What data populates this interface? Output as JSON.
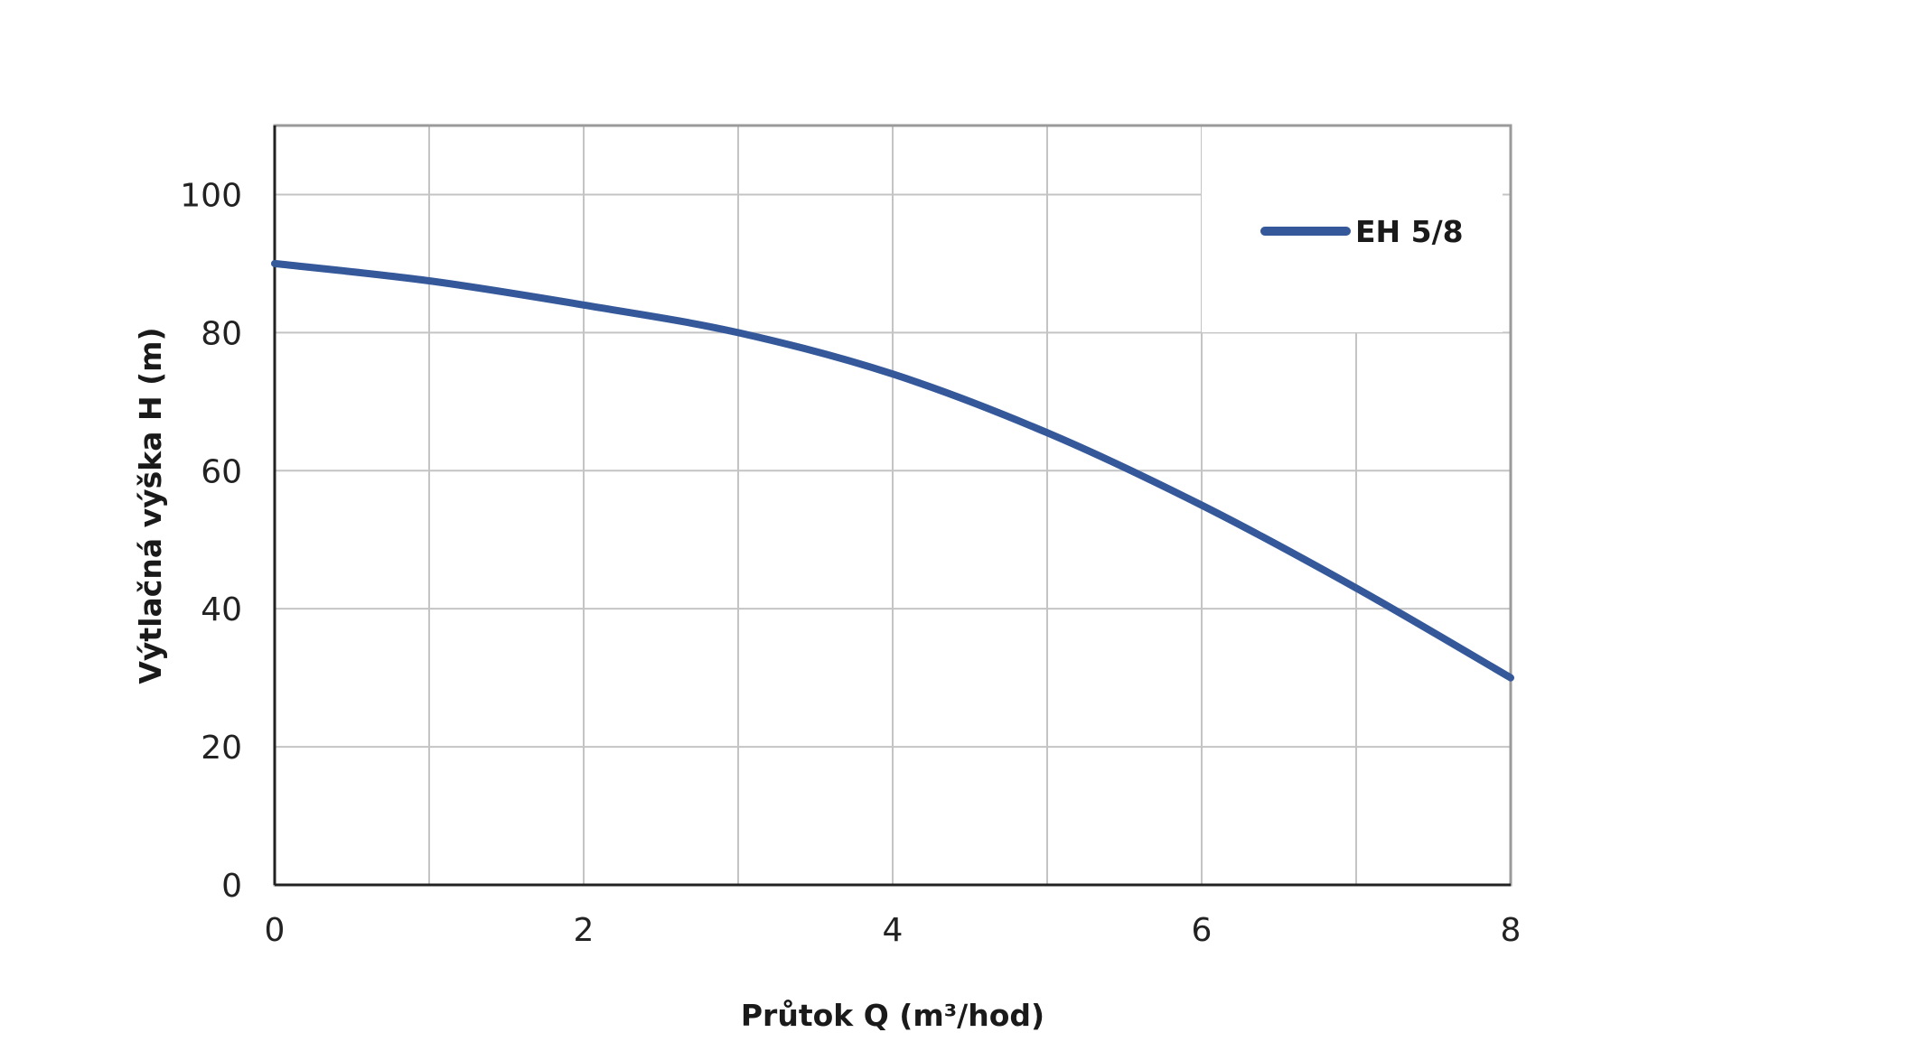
{
  "chart_data": {
    "type": "line",
    "xlabel": "Průtok Q (m³/hod)",
    "ylabel": "Výtlačná výška H (m)",
    "xlim": [
      0,
      8
    ],
    "ylim": [
      0,
      110
    ],
    "x_ticks": [
      "0",
      "2",
      "4",
      "6",
      "8"
    ],
    "y_ticks": [
      "0",
      "20",
      "40",
      "60",
      "80",
      "100"
    ],
    "grid": true,
    "legend_position": "top-right",
    "series": [
      {
        "name": "EH 5/8",
        "color": "#34589a",
        "x": [
          0,
          1,
          2,
          3,
          4,
          5,
          6,
          7,
          8
        ],
        "y": [
          90,
          87.5,
          84,
          80,
          74,
          65.5,
          55,
          43,
          30
        ]
      }
    ]
  }
}
